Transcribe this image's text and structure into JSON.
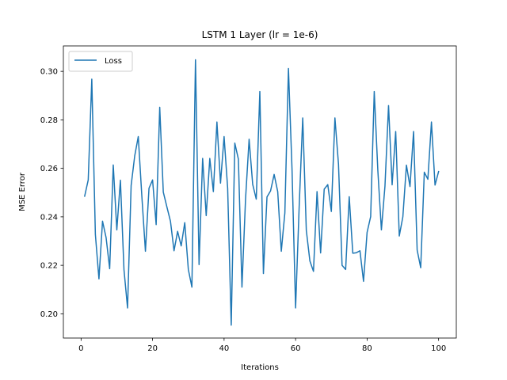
{
  "chart_data": {
    "type": "line",
    "title": "LSTM 1 Layer (lr = 1e-6)",
    "xlabel": "Iterations",
    "ylabel": "MSE Error",
    "xlim": [
      -4.95,
      104.95
    ],
    "ylim": [
      0.19,
      0.3105
    ],
    "xticks": [
      0,
      20,
      40,
      60,
      80,
      100
    ],
    "yticks": [
      0.2,
      0.22,
      0.24,
      0.26,
      0.28,
      0.3
    ],
    "ytick_labels": [
      "0.20",
      "0.22",
      "0.24",
      "0.26",
      "0.28",
      "0.30"
    ],
    "grid": false,
    "legend": {
      "position": "top-left",
      "entries": [
        "Loss"
      ]
    },
    "colors": {
      "series": "#1f77b4"
    },
    "series": [
      {
        "name": "Loss",
        "x": [
          1,
          2,
          3,
          4,
          5,
          6,
          7,
          8,
          9,
          10,
          11,
          12,
          13,
          14,
          15,
          16,
          17,
          18,
          19,
          20,
          21,
          22,
          23,
          24,
          25,
          26,
          27,
          28,
          29,
          30,
          31,
          32,
          33,
          34,
          35,
          36,
          37,
          38,
          39,
          40,
          41,
          42,
          43,
          44,
          45,
          46,
          47,
          48,
          49,
          50,
          51,
          52,
          53,
          54,
          55,
          56,
          57,
          58,
          59,
          60,
          61,
          62,
          63,
          64,
          65,
          66,
          67,
          68,
          69,
          70,
          71,
          72,
          73,
          74,
          75,
          76,
          77,
          78,
          79,
          80,
          81,
          82,
          83,
          84,
          85,
          86,
          87,
          88,
          89,
          90,
          91,
          92,
          93,
          94,
          95,
          96,
          97,
          98,
          99,
          100
        ],
        "y": [
          0.2485,
          0.2552,
          0.2968,
          0.2327,
          0.2144,
          0.2382,
          0.2314,
          0.2186,
          0.2614,
          0.2346,
          0.2551,
          0.2182,
          0.2024,
          0.2529,
          0.2651,
          0.2731,
          0.2485,
          0.2258,
          0.2518,
          0.2552,
          0.2368,
          0.2852,
          0.2502,
          0.2441,
          0.2382,
          0.226,
          0.234,
          0.228,
          0.2376,
          0.2183,
          0.211,
          0.3048,
          0.2203,
          0.2641,
          0.2405,
          0.2641,
          0.2504,
          0.2791,
          0.2539,
          0.2731,
          0.2518,
          0.1953,
          0.2704,
          0.2638,
          0.211,
          0.2473,
          0.272,
          0.2534,
          0.2473,
          0.2917,
          0.2166,
          0.2482,
          0.2507,
          0.2575,
          0.2504,
          0.2258,
          0.2416,
          0.3012,
          0.2597,
          0.2024,
          0.2442,
          0.2808,
          0.2344,
          0.2218,
          0.2175,
          0.2504,
          0.2251,
          0.2514,
          0.2533,
          0.2422,
          0.2808,
          0.2617,
          0.22,
          0.2183,
          0.2483,
          0.225,
          0.2252,
          0.226,
          0.2134,
          0.2336,
          0.2401,
          0.2917,
          0.2592,
          0.2346,
          0.2527,
          0.2859,
          0.2532,
          0.2752,
          0.2321,
          0.24,
          0.2613,
          0.2525,
          0.2752,
          0.2263,
          0.219,
          0.2584,
          0.2555,
          0.2791,
          0.2531,
          0.2587
        ]
      }
    ]
  }
}
